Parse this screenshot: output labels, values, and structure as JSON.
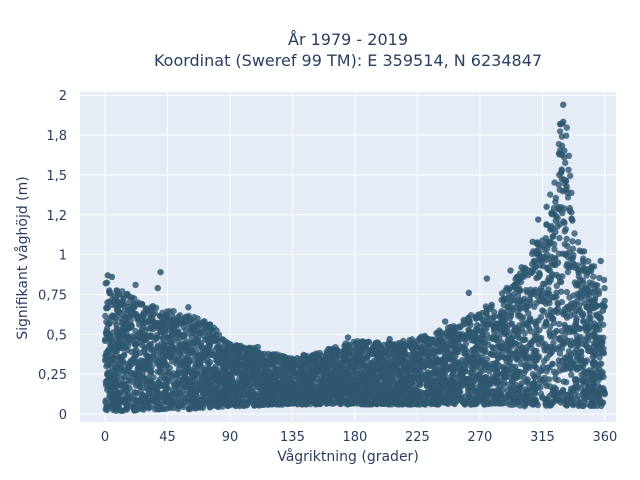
{
  "chart_data": {
    "type": "scatter",
    "title": [
      "År 1979 - 2019",
      "Koordinat (Sweref 99 TM): E 359514, N 6234847"
    ],
    "xlabel": "Vågriktning (grader)",
    "ylabel": "Signifikant våghöjd (m)",
    "xlim": [
      -18,
      368
    ],
    "ylim": [
      -0.05,
      2.02
    ],
    "x_ticks": [
      0,
      45,
      90,
      135,
      180,
      225,
      270,
      315,
      360
    ],
    "x_tick_labels": [
      "0",
      "45",
      "90",
      "135",
      "180",
      "225",
      "270",
      "315",
      "360"
    ],
    "y_ticks": [
      0,
      0.25,
      0.5,
      0.75,
      1,
      1.25,
      1.5,
      1.75,
      2
    ],
    "y_tick_labels": [
      "0",
      "0,25",
      "0,5",
      "0,75",
      "1",
      "1,2",
      "1,5",
      "1,8",
      "2"
    ],
    "grid": true,
    "marker_color": "#2e5871",
    "background_color": "#e5ecf6",
    "envelope": {
      "direction": [
        0,
        10,
        20,
        30,
        45,
        60,
        75,
        90,
        105,
        120,
        135,
        150,
        165,
        180,
        195,
        210,
        225,
        240,
        255,
        270,
        285,
        300,
        310,
        318,
        322,
        326,
        328,
        330,
        332,
        335,
        340,
        345,
        350,
        355,
        360
      ],
      "max_height": [
        0.85,
        0.78,
        0.74,
        0.7,
        0.66,
        0.62,
        0.58,
        0.44,
        0.42,
        0.38,
        0.36,
        0.38,
        0.42,
        0.46,
        0.45,
        0.45,
        0.48,
        0.52,
        0.58,
        0.65,
        0.75,
        0.9,
        1.05,
        1.25,
        1.45,
        1.7,
        1.85,
        1.92,
        1.88,
        1.6,
        1.1,
        1.0,
        0.95,
        0.9,
        0.85
      ],
      "min_height": [
        0.02,
        0.02,
        0.02,
        0.03,
        0.03,
        0.03,
        0.04,
        0.05,
        0.05,
        0.06,
        0.06,
        0.06,
        0.06,
        0.06,
        0.06,
        0.06,
        0.06,
        0.06,
        0.06,
        0.06,
        0.06,
        0.05,
        0.05,
        0.05,
        0.05,
        0.05,
        0.05,
        0.05,
        0.05,
        0.05,
        0.05,
        0.05,
        0.05,
        0.05,
        0.05
      ]
    },
    "outliers": [
      {
        "x": 2,
        "y": 0.87
      },
      {
        "x": 5,
        "y": 0.86
      },
      {
        "x": 22,
        "y": 0.81
      },
      {
        "x": 38,
        "y": 0.79
      },
      {
        "x": 40,
        "y": 0.89
      },
      {
        "x": 60,
        "y": 0.67
      },
      {
        "x": 110,
        "y": 0.42
      },
      {
        "x": 175,
        "y": 0.48
      },
      {
        "x": 205,
        "y": 0.47
      },
      {
        "x": 245,
        "y": 0.58
      },
      {
        "x": 262,
        "y": 0.76
      },
      {
        "x": 275,
        "y": 0.85
      },
      {
        "x": 292,
        "y": 0.9
      },
      {
        "x": 300,
        "y": 0.92
      },
      {
        "x": 308,
        "y": 1.08
      },
      {
        "x": 312,
        "y": 1.22
      },
      {
        "x": 318,
        "y": 1.3
      },
      {
        "x": 330,
        "y": 1.94
      },
      {
        "x": 345,
        "y": 1.02
      },
      {
        "x": 357,
        "y": 0.96
      }
    ]
  }
}
